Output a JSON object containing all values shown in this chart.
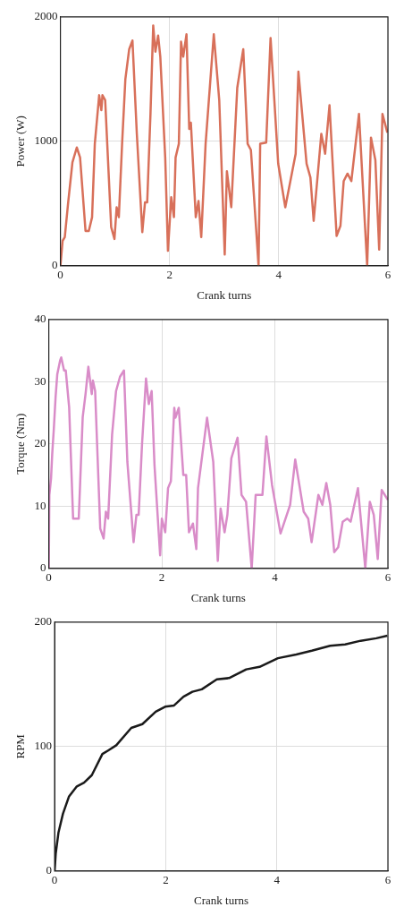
{
  "chart_data": [
    {
      "type": "line",
      "xlabel": "Crank turns",
      "ylabel": "Power (W)",
      "xlim": [
        0,
        6
      ],
      "xticks": [
        0,
        2,
        4,
        6
      ],
      "ylim": [
        0,
        2000
      ],
      "yticks": [
        0,
        1000,
        2000
      ],
      "grid": true,
      "x": [
        0,
        0.04,
        0.08,
        0.14,
        0.22,
        0.3,
        0.36,
        0.46,
        0.52,
        0.58,
        0.63,
        0.71,
        0.75,
        0.77,
        0.82,
        0.93,
        0.99,
        1.03,
        1.07,
        1.13,
        1.19,
        1.26,
        1.32,
        1.4,
        1.5,
        1.55,
        1.59,
        1.65,
        1.7,
        1.74,
        1.79,
        1.83,
        1.92,
        1.97,
        2.03,
        2.08,
        2.11,
        2.17,
        2.21,
        2.25,
        2.31,
        2.36,
        2.39,
        2.48,
        2.53,
        2.58,
        2.66,
        2.81,
        2.91,
        3.01,
        3.05,
        3.13,
        3.24,
        3.35,
        3.43,
        3.49,
        3.63,
        3.66,
        3.77,
        3.85,
        3.99,
        4.12,
        4.31,
        4.36,
        4.51,
        4.58,
        4.64,
        4.78,
        4.85,
        4.93,
        5.06,
        5.13,
        5.19,
        5.26,
        5.33,
        5.47,
        5.62,
        5.69,
        5.77,
        5.84,
        5.9,
        5.99
      ],
      "series": [
        {
          "color": "#d8705a",
          "values": [
            0,
            200,
            230,
            500,
            830,
            950,
            870,
            280,
            280,
            390,
            980,
            1370,
            1250,
            1370,
            1330,
            310,
            215,
            470,
            390,
            980,
            1500,
            1740,
            1810,
            1060,
            270,
            510,
            510,
            1220,
            1930,
            1720,
            1850,
            1680,
            870,
            120,
            550,
            390,
            870,
            980,
            1800,
            1680,
            1860,
            1100,
            1150,
            390,
            520,
            230,
            980,
            1860,
            1330,
            90,
            760,
            470,
            1430,
            1740,
            980,
            930,
            0,
            980,
            990,
            1830,
            820,
            470,
            900,
            1560,
            820,
            710,
            360,
            1060,
            900,
            1290,
            240,
            320,
            680,
            740,
            680,
            1220,
            0,
            1030,
            850,
            130,
            1220,
            1070
          ]
        }
      ]
    },
    {
      "type": "line",
      "xlabel": "Crank turns",
      "ylabel": "Torque (Nm)",
      "xlim": [
        0,
        6
      ],
      "xticks": [
        0,
        2,
        4,
        6
      ],
      "ylim": [
        0,
        40
      ],
      "yticks": [
        0,
        10,
        20,
        30,
        40
      ],
      "grid": true,
      "x": [
        0,
        0.01,
        0.04,
        0.06,
        0.09,
        0.12,
        0.15,
        0.2,
        0.22,
        0.27,
        0.3,
        0.36,
        0.43,
        0.53,
        0.6,
        0.65,
        0.7,
        0.76,
        0.78,
        0.82,
        0.91,
        0.97,
        1.01,
        1.05,
        1.12,
        1.19,
        1.26,
        1.33,
        1.39,
        1.5,
        1.55,
        1.59,
        1.65,
        1.72,
        1.77,
        1.82,
        1.87,
        1.97,
        2.0,
        2.06,
        2.11,
        2.16,
        2.22,
        2.24,
        2.3,
        2.38,
        2.43,
        2.48,
        2.55,
        2.61,
        2.64,
        2.8,
        2.91,
        2.99,
        3.04,
        3.11,
        3.16,
        3.23,
        3.34,
        3.41,
        3.49,
        3.59,
        3.66,
        3.78,
        3.85,
        3.95,
        4.1,
        4.27,
        4.36,
        4.51,
        4.59,
        4.65,
        4.77,
        4.84,
        4.91,
        4.98,
        5.05,
        5.12,
        5.2,
        5.28,
        5.34,
        5.47,
        5.6,
        5.68,
        5.75,
        5.82,
        5.89,
        6.0
      ],
      "series": [
        {
          "color": "#d98cc8",
          "values": [
            0,
            11.8,
            14.5,
            18.3,
            22.6,
            27.5,
            31.2,
            33.4,
            33.9,
            31.8,
            31.8,
            25.9,
            8,
            8,
            24.3,
            28,
            32.4,
            28,
            30.2,
            28.5,
            6.4,
            4.8,
            9.1,
            8,
            21.5,
            28.5,
            30.8,
            31.8,
            17.1,
            4.2,
            8.6,
            8.6,
            20,
            30.5,
            26.4,
            28.5,
            16.6,
            2.1,
            8,
            5.8,
            12.9,
            14,
            25.8,
            24.2,
            25.8,
            15,
            15,
            5.8,
            7.2,
            3.1,
            12.9,
            24.2,
            17.1,
            1.2,
            9.6,
            5.8,
            8.6,
            17.7,
            21,
            11.8,
            10.7,
            0,
            11.8,
            11.8,
            21.2,
            13.4,
            5.6,
            10.2,
            17.5,
            9.1,
            8,
            4.2,
            11.8,
            10.2,
            13.7,
            10.2,
            2.6,
            3.4,
            7.5,
            8,
            7.5,
            12.9,
            0,
            10.7,
            8.6,
            1.5,
            12.6,
            11
          ]
        }
      ]
    },
    {
      "type": "line",
      "xlabel": "Crank turns",
      "ylabel": "RPM",
      "xlim": [
        0,
        6
      ],
      "xticks": [
        0,
        2,
        4,
        6
      ],
      "ylim": [
        0,
        200
      ],
      "yticks": [
        0,
        100,
        200
      ],
      "grid": true,
      "x": [
        0,
        0.02,
        0.07,
        0.15,
        0.26,
        0.4,
        0.53,
        0.67,
        0.86,
        0.97,
        1.11,
        1.38,
        1.58,
        1.82,
        1.99,
        2.15,
        2.32,
        2.48,
        2.65,
        2.92,
        3.14,
        3.45,
        3.69,
        4.02,
        4.35,
        4.63,
        4.96,
        5.23,
        5.51,
        5.79,
        5.99
      ],
      "series": [
        {
          "color": "#1a1a1a",
          "values": [
            0,
            14,
            31,
            46,
            60,
            68,
            71,
            77,
            94,
            97,
            101,
            115,
            118,
            128,
            132,
            133,
            140,
            144,
            146,
            154,
            155,
            162,
            164,
            171,
            174,
            177,
            181,
            182,
            185,
            187,
            189
          ]
        }
      ]
    }
  ]
}
